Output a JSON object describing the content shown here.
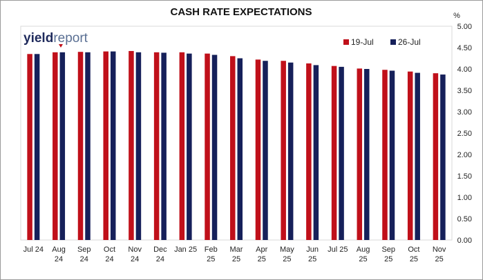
{
  "chart_data": {
    "type": "bar",
    "title": "CASH RATE EXPECTATIONS",
    "ylabel": "%",
    "ylim": [
      0,
      5
    ],
    "ytick_step": 0.5,
    "grid": false,
    "legend_position": "top-right",
    "logo": {
      "part1": "yield",
      "part2": "report"
    },
    "categories": [
      [
        "Jul 24"
      ],
      [
        "Aug",
        "24"
      ],
      [
        "Sep",
        "24"
      ],
      [
        "Oct",
        "24"
      ],
      [
        "Nov",
        "24"
      ],
      [
        "Dec",
        "24"
      ],
      [
        "Jan 25"
      ],
      [
        "Feb",
        "25"
      ],
      [
        "Mar",
        "25"
      ],
      [
        "Apr",
        "25"
      ],
      [
        "May",
        "25"
      ],
      [
        "Jun",
        "25"
      ],
      [
        "Jul 25"
      ],
      [
        "Aug",
        "25"
      ],
      [
        "Sep",
        "25"
      ],
      [
        "Oct",
        "25"
      ],
      [
        "Nov",
        "25"
      ]
    ],
    "series": [
      {
        "name": "19-Jul",
        "color": "#c0101a",
        "values": [
          4.35,
          4.39,
          4.4,
          4.41,
          4.42,
          4.39,
          4.39,
          4.36,
          4.3,
          4.22,
          4.19,
          4.13,
          4.07,
          4.01,
          3.98,
          3.94,
          3.9
        ]
      },
      {
        "name": "26-Jul",
        "color": "#16205a",
        "values": [
          4.35,
          4.39,
          4.39,
          4.41,
          4.39,
          4.38,
          4.36,
          4.33,
          4.25,
          4.19,
          4.15,
          4.09,
          4.05,
          4.0,
          3.96,
          3.91,
          3.87
        ]
      }
    ]
  }
}
